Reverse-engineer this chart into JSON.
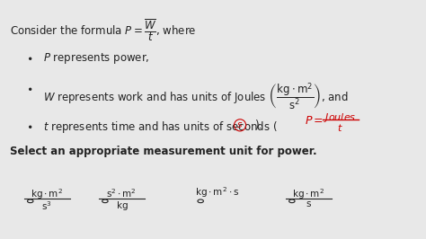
{
  "bg_color": "#e8e8e8",
  "text_color": "#222222",
  "red_color": "#cc0000",
  "title": "Consider the formula $P = \\dfrac{W}{t}$, where",
  "bullet1": "$P$ represents power,",
  "bullet2": "$W$ represents work and has units of Joules $\\left(\\dfrac{\\mathrm{kg \\cdot m^2}}{\\mathrm{s^2}}\\right)$, and",
  "bullet3": "$t$ represents time and has units of seconds ($\\textcolor{red}{s}$).",
  "select_text": "Select an appropriate measurement unit for power.",
  "handwritten": "$P = \\dfrac{\\mathrm{Joules}}{t}$",
  "option1_top": "$\\mathrm{kg \\cdot m^2}$",
  "option1_bot": "$\\mathrm{s^3}$",
  "option2_top": "$\\mathrm{s^2 \\cdot m^2}$",
  "option2_bot": "$\\mathrm{kg}$",
  "option3": "$\\mathrm{kg \\cdot m^2 \\cdot s}$",
  "option4_top": "$\\mathrm{kg \\cdot m^2}$",
  "option4_bot": "$\\mathrm{s}$"
}
